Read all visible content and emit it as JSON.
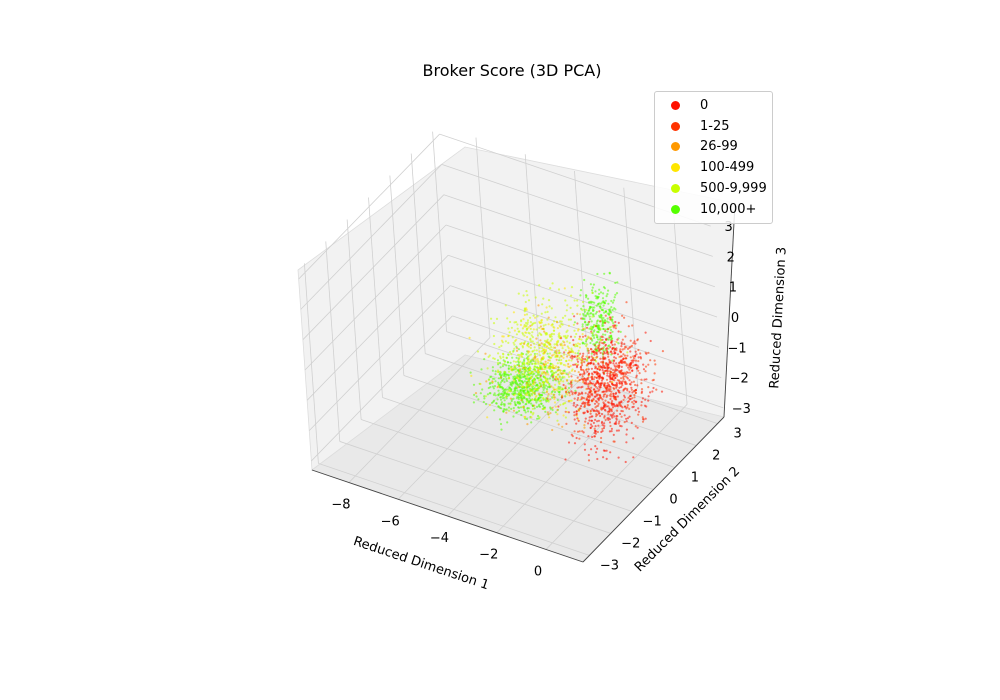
{
  "chart_data": {
    "type": "scatter",
    "projection": "3d",
    "title": "Broker Score (3D PCA)",
    "xlabel": "Reduced Dimension 1",
    "ylabel": "Reduced Dimension 2",
    "zlabel": "Reduced Dimension 3",
    "x_ticks": [
      "−8",
      "−6",
      "−4",
      "−2",
      "0"
    ],
    "y_ticks": [
      "−3",
      "−2",
      "−1",
      "0",
      "1",
      "2",
      "3"
    ],
    "z_ticks": [
      "−3",
      "−2",
      "−1",
      "0",
      "1",
      "2",
      "3"
    ],
    "xlim": [
      -9.5,
      1.5
    ],
    "ylim": [
      -3.3,
      3.3
    ],
    "zlim": [
      -3.3,
      3.3
    ],
    "grid": true,
    "legend_position": "top-right",
    "series": [
      {
        "name": "0",
        "color": "#ff1100"
      },
      {
        "name": "1-25",
        "color": "#ff3300"
      },
      {
        "name": "26-99",
        "color": "#ff9900"
      },
      {
        "name": "100-499",
        "color": "#ffe600"
      },
      {
        "name": "500-9,999",
        "color": "#c8ff00"
      },
      {
        "name": "10,000+",
        "color": "#55ff00"
      }
    ],
    "clusters": [
      {
        "series": "10,000+",
        "center": [
          -4.2,
          0.6,
          -1.9
        ],
        "spread": [
          0.9,
          0.7,
          0.4
        ],
        "count": 650
      },
      {
        "series": "10,000+",
        "center": [
          -2.0,
          1.8,
          0.0
        ],
        "spread": [
          0.4,
          0.4,
          0.9
        ],
        "count": 280
      },
      {
        "series": "500-9,999",
        "center": [
          -3.6,
          1.0,
          -0.8
        ],
        "spread": [
          1.1,
          0.9,
          1.0
        ],
        "count": 500
      },
      {
        "series": "100-499",
        "center": [
          -3.4,
          0.8,
          -1.0
        ],
        "spread": [
          1.3,
          1.0,
          1.1
        ],
        "count": 160
      },
      {
        "series": "26-99",
        "center": [
          -3.0,
          0.6,
          -1.2
        ],
        "spread": [
          1.3,
          1.0,
          1.0
        ],
        "count": 130
      },
      {
        "series": "1-25",
        "center": [
          -1.2,
          1.2,
          -1.2
        ],
        "spread": [
          0.9,
          0.8,
          1.0
        ],
        "count": 500
      },
      {
        "series": "0",
        "center": [
          -0.9,
          0.8,
          -1.3
        ],
        "spread": [
          0.8,
          0.8,
          1.0
        ],
        "count": 500
      },
      {
        "series": "0",
        "center": [
          1.1,
          -0.2,
          0.9
        ],
        "spread": [
          0.06,
          0.06,
          0.06
        ],
        "count": 4
      }
    ]
  }
}
